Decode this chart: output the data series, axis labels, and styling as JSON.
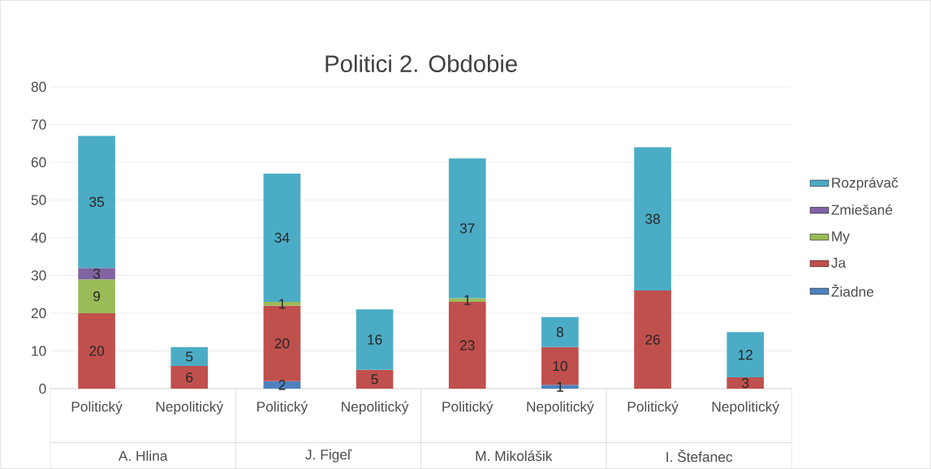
{
  "chart_data": {
    "type": "bar",
    "stacked": true,
    "title": "Politici 2. Obdobie",
    "categories": [
      "Politický",
      "Nepolitický",
      "Politický",
      "Nepolitický",
      "Politický",
      "Nepolitický",
      "Politický",
      "Nepolitický"
    ],
    "series": [
      {
        "name": "Žiadne",
        "color": "#4f81bd",
        "values": [
          null,
          null,
          2,
          null,
          null,
          1,
          null,
          null
        ]
      },
      {
        "name": "Ja",
        "color": "#c0504d",
        "values": [
          20,
          6,
          20,
          5,
          23,
          10,
          26,
          3
        ]
      },
      {
        "name": "My",
        "color": "#9bbb59",
        "values": [
          9,
          null,
          1,
          null,
          1,
          null,
          null,
          null
        ]
      },
      {
        "name": "Zmiešané",
        "color": "#8064a2",
        "values": [
          3,
          null,
          null,
          null,
          null,
          null,
          null,
          null
        ]
      },
      {
        "name": "Rozprávač",
        "color": "#4bacc6",
        "values": [
          35,
          5,
          34,
          16,
          37,
          8,
          38,
          12
        ]
      }
    ],
    "annotations": [
      "A. Hlina",
      "J. Figeľ",
      "M. Mikolášik",
      "I. Štefanec"
    ],
    "ylim": [
      0,
      80
    ],
    "yticks": [
      0,
      10,
      20,
      30,
      40,
      50,
      60,
      70,
      80
    ],
    "grid": "y",
    "legend": "right",
    "data_labels": true
  }
}
